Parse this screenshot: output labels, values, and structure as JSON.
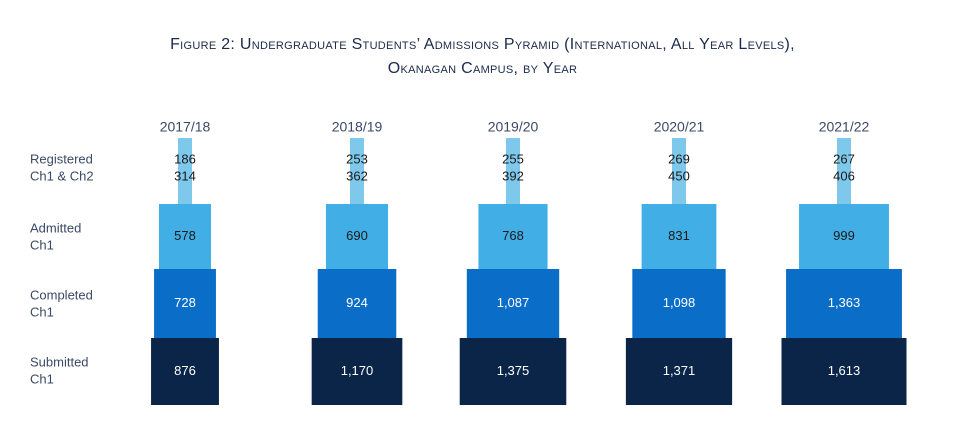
{
  "title_line1": "Figure 2: Undergraduate Students’ Admissions Pyramid (International, All Year Levels),",
  "title_line2": "Okanagan Campus, by Year",
  "chart_data": {
    "type": "bar",
    "orientation": "pyramid",
    "title": "Figure 2: Undergraduate Students’ Admissions Pyramid (International, All Year Levels), Okanagan Campus, by Year",
    "categories": [
      "2017/18",
      "2018/19",
      "2019/20",
      "2020/21",
      "2021/22"
    ],
    "stage_labels": [
      [
        "Registered",
        "Ch1 & Ch2"
      ],
      [
        "Admitted",
        "Ch1"
      ],
      [
        "Completed",
        "Ch1"
      ],
      [
        "Submitted",
        "Ch1"
      ]
    ],
    "series": [
      {
        "name": "Registered Ch1",
        "values": [
          186,
          253,
          255,
          269,
          267
        ],
        "labels": [
          "186",
          "253",
          "255",
          "269",
          "267"
        ]
      },
      {
        "name": "Registered Ch2",
        "values": [
          314,
          362,
          392,
          450,
          406
        ],
        "labels": [
          "314",
          "362",
          "392",
          "450",
          "406"
        ]
      },
      {
        "name": "Admitted Ch1",
        "values": [
          578,
          690,
          768,
          831,
          999
        ],
        "labels": [
          "578",
          "690",
          "768",
          "831",
          "999"
        ]
      },
      {
        "name": "Completed Ch1",
        "values": [
          728,
          924,
          1087,
          1098,
          1363
        ],
        "labels": [
          "728",
          "924",
          "1,087",
          "1,098",
          "1,363"
        ]
      },
      {
        "name": "Submitted Ch1",
        "values": [
          876,
          1170,
          1375,
          1371,
          1613
        ],
        "labels": [
          "876",
          "1,170",
          "1,375",
          "1,371",
          "1,613"
        ]
      }
    ],
    "colors": {
      "registered": "#7ec8ec",
      "admitted": "#41afe6",
      "completed": "#0a6ec8",
      "submitted": "#0b2548",
      "label_dark": "#1a1a1a",
      "label_light": "#ffffff"
    },
    "grid": false,
    "legend": "none"
  }
}
